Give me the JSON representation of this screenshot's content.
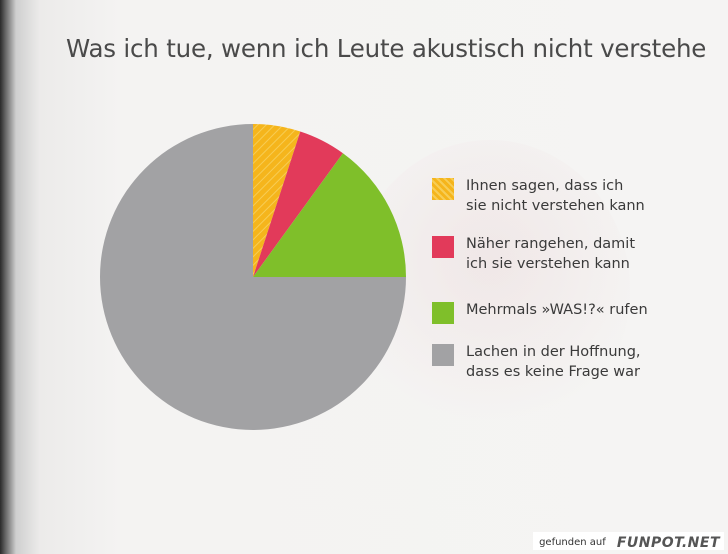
{
  "title": "Was ich tue, wenn ich Leute akustisch nicht verstehe",
  "chart_data": {
    "type": "pie",
    "title": "Was ich tue, wenn ich Leute akustisch nicht verstehe",
    "start": "12 o'clock, clockwise",
    "slices": [
      {
        "label": "Ihnen sagen, dass ich\nsie nicht verstehen kann",
        "value": 5,
        "color": "#f5b51c"
      },
      {
        "label": "Näher rangehen, damit\nich sie verstehen kann",
        "value": 5,
        "color": "#e23a5a"
      },
      {
        "label": "Mehrmals »WAS!?« rufen",
        "value": 15,
        "color": "#7fbf2a"
      },
      {
        "label": "Lachen in der Hoffnung,\ndass es keine Frage war",
        "value": 75,
        "color": "#a2a2a4"
      }
    ],
    "legend": "right"
  },
  "footer": {
    "prefix": "gefunden auf",
    "brand": "FUNPOT.NET"
  }
}
